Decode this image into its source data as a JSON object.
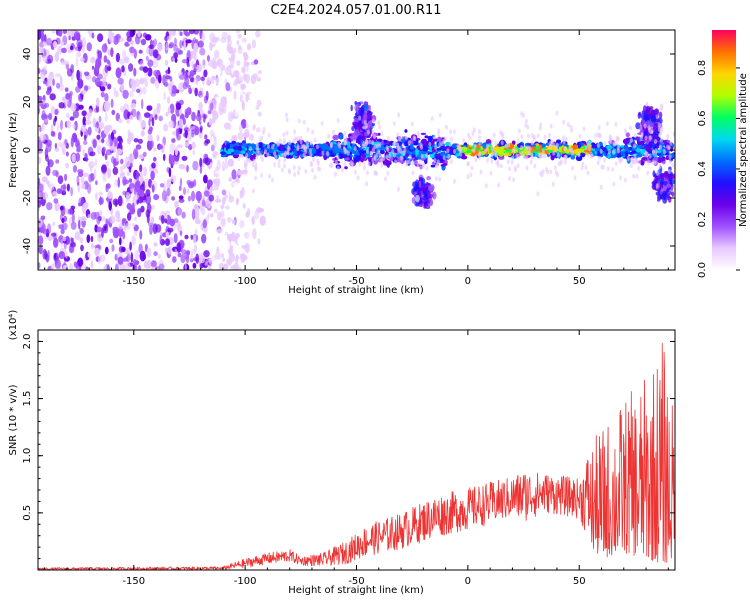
{
  "figure": {
    "title": "C2E4.2024.057.01.00.R11"
  },
  "chart_data": [
    {
      "type": "heatmap",
      "xlabel": "Height of straight line (km)",
      "ylabel": "Frequency (Hz)",
      "xlim": [
        -193,
        93
      ],
      "ylim": [
        -50,
        50
      ],
      "xticks": [
        -150,
        -100,
        -50,
        0,
        50
      ],
      "yticks": [
        -40,
        -20,
        0,
        20,
        40
      ],
      "colorbar": {
        "label": "Normalized spectral amplitude",
        "range": [
          0,
          0.95
        ],
        "ticks": [
          0.0,
          0.2,
          0.4,
          0.6,
          0.8
        ],
        "colormap": [
          "#ffffff",
          "#e7c8ff",
          "#a050ff",
          "#6a00e8",
          "#2010ff",
          "#0070ff",
          "#00d8f0",
          "#00ff60",
          "#b0ff00",
          "#ffd400",
          "#ff7000",
          "#ff0060"
        ]
      },
      "features": {
        "noise_region_x": [
          -193,
          -100
        ],
        "signal_band_center_hz": 0,
        "peak_band_x": [
          -5,
          55
        ],
        "peak_amplitude": 0.9,
        "burst_x": [
          -48,
          85
        ]
      }
    },
    {
      "type": "line",
      "xlabel": "Height of straight line (km)",
      "ylabel": "SNR (10 * v/v)",
      "scale_label": "(x10⁴)",
      "xlim": [
        -193,
        93
      ],
      "ylim": [
        0,
        2.1
      ],
      "xticks": [
        -150,
        -100,
        -50,
        0,
        50
      ],
      "yticks": [
        0.5,
        1.0,
        1.5,
        2.0
      ],
      "color": "#ee3333",
      "envelope": {
        "x": [
          -193,
          -110,
          -100,
          -90,
          -80,
          -75,
          -65,
          -55,
          -45,
          -30,
          -15,
          0,
          20,
          25,
          35,
          50,
          55,
          60,
          70,
          80,
          88,
          93
        ],
        "low": [
          0.0,
          0.0,
          0.02,
          0.05,
          0.07,
          0.04,
          0.03,
          0.05,
          0.12,
          0.18,
          0.28,
          0.35,
          0.45,
          0.42,
          0.5,
          0.45,
          0.2,
          0.1,
          0.15,
          0.1,
          0.05,
          0.1
        ],
        "high": [
          0.02,
          0.03,
          0.1,
          0.15,
          0.18,
          0.12,
          0.15,
          0.25,
          0.4,
          0.5,
          0.65,
          0.72,
          0.82,
          0.88,
          0.85,
          0.8,
          1.1,
          1.25,
          1.5,
          1.7,
          2.05,
          1.3
        ]
      }
    }
  ]
}
